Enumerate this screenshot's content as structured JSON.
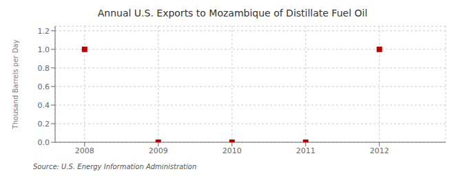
{
  "chart_data": {
    "type": "scatter",
    "title": "Annual U.S. Exports to Mozambique of Distillate Fuel Oil",
    "ylabel": "Thousand Barrels per Day",
    "annotations": [
      "Source: U.S. Energy Information Administration"
    ],
    "x": [
      2008,
      2009,
      2010,
      2011,
      2012
    ],
    "values": [
      1.0,
      0.0,
      0.0,
      0.0,
      1.0
    ],
    "color": "#bb0000",
    "marker": "square",
    "xlim": [
      2007.6,
      2012.9
    ],
    "ylim": [
      0.0,
      1.25
    ],
    "xticks": [
      2008,
      2009,
      2010,
      2011,
      2012
    ],
    "yticks": [
      {
        "value": 0.0,
        "label": "0.0"
      },
      0.2,
      0.4,
      0.6,
      0.8,
      {
        "value": 1.0,
        "label": "1.0"
      },
      1.2
    ],
    "grid": true
  }
}
